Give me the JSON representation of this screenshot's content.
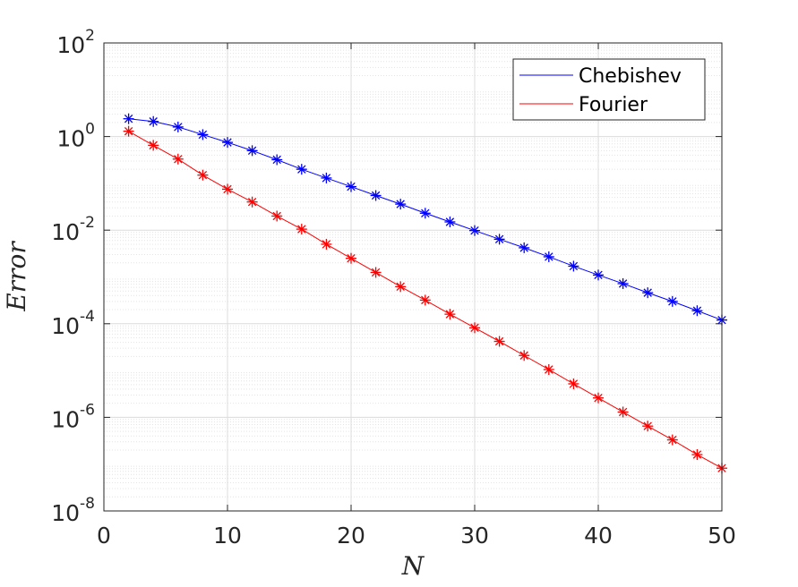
{
  "chart_data": {
    "type": "line",
    "title": "",
    "xlabel": "N",
    "ylabel": "Error",
    "xlim": [
      0,
      50
    ],
    "ylim_log10": [
      -8,
      2
    ],
    "yscale": "log",
    "grid": true,
    "minor_grid": true,
    "legend_position": "top-right",
    "x_ticks": [
      "0",
      "10",
      "20",
      "30",
      "40",
      "50"
    ],
    "y_ticks": [
      {
        "base": "10",
        "exp": "2"
      },
      {
        "base": "10",
        "exp": "0"
      },
      {
        "base": "10",
        "exp": "-2"
      },
      {
        "base": "10",
        "exp": "-4"
      },
      {
        "base": "10",
        "exp": "-6"
      },
      {
        "base": "10",
        "exp": "-8"
      }
    ],
    "x": [
      2,
      4,
      6,
      8,
      10,
      12,
      14,
      16,
      18,
      20,
      22,
      24,
      26,
      28,
      30,
      32,
      34,
      36,
      38,
      40,
      42,
      44,
      46,
      48,
      50
    ],
    "series": [
      {
        "name": "Chebishev",
        "color": "#0000ff",
        "marker": "asterisk",
        "values": [
          2.4,
          2.1,
          1.6,
          1.1,
          0.75,
          0.5,
          0.32,
          0.2,
          0.13,
          0.085,
          0.055,
          0.036,
          0.023,
          0.015,
          0.0098,
          0.0064,
          0.0042,
          0.0027,
          0.0017,
          0.0011,
          0.00072,
          0.00046,
          0.0003,
          0.00019,
          0.00012
        ]
      },
      {
        "name": "Fourier",
        "color": "#ff0000",
        "marker": "asterisk",
        "values": [
          1.3,
          0.65,
          0.33,
          0.15,
          0.075,
          0.04,
          0.02,
          0.0105,
          0.005,
          0.0025,
          0.00125,
          0.00062,
          0.00032,
          0.00016,
          8.2e-05,
          4.2e-05,
          2.1e-05,
          1.05e-05,
          5.2e-06,
          2.6e-06,
          1.3e-06,
          6.5e-07,
          3.3e-07,
          1.6e-07,
          8.2e-08
        ]
      }
    ]
  }
}
